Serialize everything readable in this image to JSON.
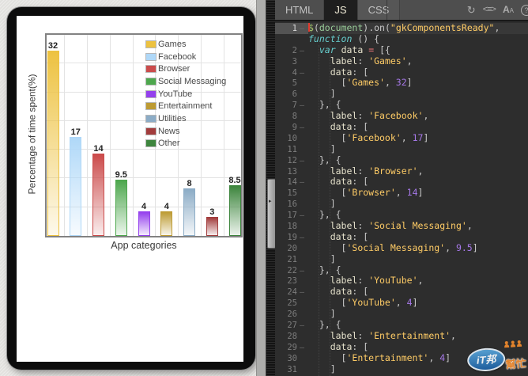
{
  "chart_data": {
    "type": "bar",
    "categories": [
      "Games",
      "Facebook",
      "Browser",
      "Social Messaging",
      "YouTube",
      "Entertainment",
      "Utilities",
      "News",
      "Other"
    ],
    "values": [
      32,
      17,
      14,
      9.5,
      4,
      4,
      8,
      3,
      8.5
    ],
    "value_labels": [
      "32",
      "17",
      "14",
      "9.5",
      "4",
      "4",
      "8",
      "3",
      "8.5"
    ],
    "colors": [
      "#EDC240",
      "#AFD8F8",
      "#CB4B4B",
      "#4DA74D",
      "#9440ED",
      "#BD9B33",
      "#8CACC6",
      "#A23C3C",
      "#3D853D"
    ],
    "title": "",
    "xlabel": "App categories",
    "ylabel": "Percentage of time spent(%)",
    "ylim": [
      0,
      35
    ],
    "grid": true,
    "grid_step": 5,
    "legend_position": "top-right"
  },
  "editor": {
    "tabs": [
      {
        "label": "HTML",
        "active": false
      },
      {
        "label": "JS",
        "active": true
      },
      {
        "label": "CSS",
        "active": false
      }
    ],
    "toolbar_icons": [
      {
        "name": "refresh-icon",
        "glyph": "↻"
      },
      {
        "name": "code-wrap-icon",
        "glyph": "<≡>"
      },
      {
        "name": "font-size-icon",
        "glyph": "A"
      },
      {
        "name": "help-icon",
        "glyph": "?"
      }
    ],
    "active_line": "1",
    "rows": [
      {
        "l": "1",
        "f": 1,
        "a": 1,
        "t": [
          [
            "d",
            "$"
          ],
          [
            "p",
            "("
          ],
          [
            "g",
            "document"
          ],
          [
            "p",
            ").on("
          ],
          [
            "s",
            "\"gkComponentsReady\""
          ],
          [
            "p",
            ","
          ]
        ]
      },
      {
        "l": "",
        "t": [
          [
            "k",
            "function"
          ],
          [
            "p",
            " () {"
          ]
        ]
      },
      {
        "l": "2",
        "f": 1,
        "t": [
          [
            "p",
            "  "
          ],
          [
            "k",
            "var"
          ],
          [
            "p",
            " "
          ],
          [
            "v",
            "data"
          ],
          [
            "p",
            " "
          ],
          [
            "o",
            "="
          ],
          [
            "p",
            " [{"
          ]
        ]
      },
      {
        "l": "3",
        "t": [
          [
            "p",
            "    "
          ],
          [
            "v",
            "label"
          ],
          [
            "p",
            ": "
          ],
          [
            "s",
            "'Games'"
          ],
          [
            "p",
            ","
          ]
        ]
      },
      {
        "l": "4",
        "f": 1,
        "t": [
          [
            "p",
            "    "
          ],
          [
            "v",
            "data"
          ],
          [
            "p",
            ": ["
          ]
        ]
      },
      {
        "l": "5",
        "t": [
          [
            "p",
            "      ["
          ],
          [
            "s",
            "'Games'"
          ],
          [
            "p",
            ", "
          ],
          [
            "n",
            "32"
          ],
          [
            "p",
            "]"
          ]
        ]
      },
      {
        "l": "6",
        "t": [
          [
            "p",
            "    ]"
          ]
        ]
      },
      {
        "l": "7",
        "f": 1,
        "t": [
          [
            "p",
            "  }, {"
          ]
        ]
      },
      {
        "l": "8",
        "t": [
          [
            "p",
            "    "
          ],
          [
            "v",
            "label"
          ],
          [
            "p",
            ": "
          ],
          [
            "s",
            "'Facebook'"
          ],
          [
            "p",
            ","
          ]
        ]
      },
      {
        "l": "9",
        "f": 1,
        "t": [
          [
            "p",
            "    "
          ],
          [
            "v",
            "data"
          ],
          [
            "p",
            ": ["
          ]
        ]
      },
      {
        "l": "10",
        "t": [
          [
            "p",
            "      ["
          ],
          [
            "s",
            "'Facebook'"
          ],
          [
            "p",
            ", "
          ],
          [
            "n",
            "17"
          ],
          [
            "p",
            "]"
          ]
        ]
      },
      {
        "l": "11",
        "t": [
          [
            "p",
            "    ]"
          ]
        ]
      },
      {
        "l": "12",
        "f": 1,
        "t": [
          [
            "p",
            "  }, {"
          ]
        ]
      },
      {
        "l": "13",
        "t": [
          [
            "p",
            "    "
          ],
          [
            "v",
            "label"
          ],
          [
            "p",
            ": "
          ],
          [
            "s",
            "'Browser'"
          ],
          [
            "p",
            ","
          ]
        ]
      },
      {
        "l": "14",
        "f": 1,
        "t": [
          [
            "p",
            "    "
          ],
          [
            "v",
            "data"
          ],
          [
            "p",
            ": ["
          ]
        ]
      },
      {
        "l": "15",
        "t": [
          [
            "p",
            "      ["
          ],
          [
            "s",
            "'Browser'"
          ],
          [
            "p",
            ", "
          ],
          [
            "n",
            "14"
          ],
          [
            "p",
            "]"
          ]
        ]
      },
      {
        "l": "16",
        "t": [
          [
            "p",
            "    ]"
          ]
        ]
      },
      {
        "l": "17",
        "f": 1,
        "t": [
          [
            "p",
            "  }, {"
          ]
        ]
      },
      {
        "l": "18",
        "t": [
          [
            "p",
            "    "
          ],
          [
            "v",
            "label"
          ],
          [
            "p",
            ": "
          ],
          [
            "s",
            "'Social Messaging'"
          ],
          [
            "p",
            ","
          ]
        ]
      },
      {
        "l": "19",
        "f": 1,
        "t": [
          [
            "p",
            "    "
          ],
          [
            "v",
            "data"
          ],
          [
            "p",
            ": ["
          ]
        ]
      },
      {
        "l": "20",
        "t": [
          [
            "p",
            "      ["
          ],
          [
            "s",
            "'Social Messaging'"
          ],
          [
            "p",
            ", "
          ],
          [
            "n",
            "9.5"
          ],
          [
            "p",
            "]"
          ]
        ]
      },
      {
        "l": "21",
        "t": [
          [
            "p",
            "    ]"
          ]
        ]
      },
      {
        "l": "22",
        "f": 1,
        "t": [
          [
            "p",
            "  }, {"
          ]
        ]
      },
      {
        "l": "23",
        "t": [
          [
            "p",
            "    "
          ],
          [
            "v",
            "label"
          ],
          [
            "p",
            ": "
          ],
          [
            "s",
            "'YouTube'"
          ],
          [
            "p",
            ","
          ]
        ]
      },
      {
        "l": "24",
        "f": 1,
        "t": [
          [
            "p",
            "    "
          ],
          [
            "v",
            "data"
          ],
          [
            "p",
            ": ["
          ]
        ]
      },
      {
        "l": "25",
        "t": [
          [
            "p",
            "      ["
          ],
          [
            "s",
            "'YouTube'"
          ],
          [
            "p",
            ", "
          ],
          [
            "n",
            "4"
          ],
          [
            "p",
            "]"
          ]
        ]
      },
      {
        "l": "26",
        "t": [
          [
            "p",
            "    ]"
          ]
        ]
      },
      {
        "l": "27",
        "f": 1,
        "t": [
          [
            "p",
            "  }, {"
          ]
        ]
      },
      {
        "l": "28",
        "t": [
          [
            "p",
            "    "
          ],
          [
            "v",
            "label"
          ],
          [
            "p",
            ": "
          ],
          [
            "s",
            "'Entertainment'"
          ],
          [
            "p",
            ","
          ]
        ]
      },
      {
        "l": "29",
        "f": 1,
        "t": [
          [
            "p",
            "    "
          ],
          [
            "v",
            "data"
          ],
          [
            "p",
            ": ["
          ]
        ]
      },
      {
        "l": "30",
        "t": [
          [
            "p",
            "      ["
          ],
          [
            "s",
            "'Entertainment'"
          ],
          [
            "p",
            ", "
          ],
          [
            "n",
            "4"
          ],
          [
            "p",
            "]"
          ]
        ]
      },
      {
        "l": "31",
        "t": [
          [
            "p",
            "    ]"
          ]
        ]
      }
    ]
  },
  "splitter": {
    "arrow": "▸"
  },
  "watermark": {
    "text_main": "iT邦",
    "text_sub": "幫忙"
  }
}
